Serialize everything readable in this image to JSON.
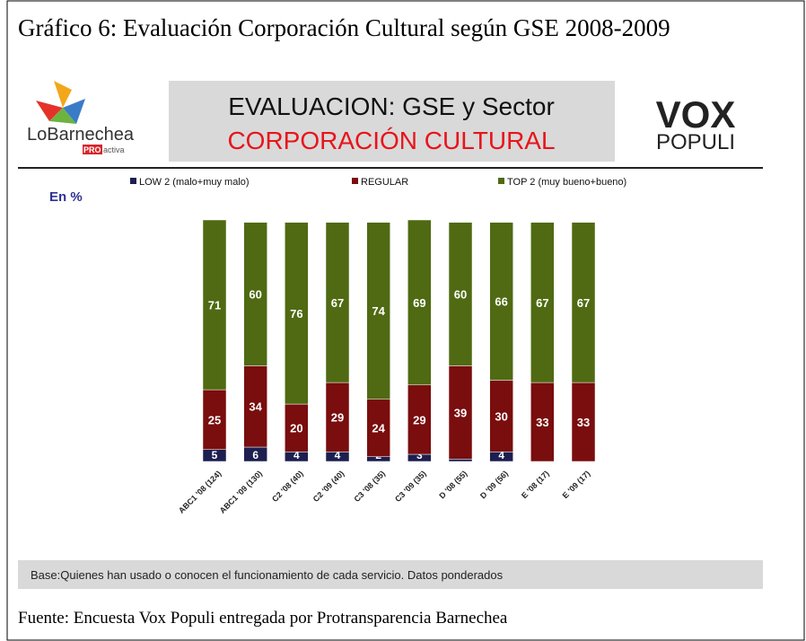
{
  "title": "Gráfico 6: Evaluación Corporación Cultural según GSE 2008-2009",
  "header": {
    "logo_left": "LoBarnechea",
    "logo_badge": "PRO",
    "logo_badge_suffix": "activa",
    "heading": "EVALUACION: GSE y Sector",
    "subheading": "CORPORACIÓN CULTURAL",
    "logo_right_top": "VOX",
    "logo_right_bottom": "POPULI"
  },
  "chart_data": {
    "type": "stacked_bar",
    "y_label": "En %",
    "categories": [
      "ABC1 '08 (124)",
      "ABC1 '09 (130)",
      "C2 '08 (40)",
      "C2 '09 (40)",
      "C3 '08 (35)",
      "C3 '09 (35)",
      "D '08 (55)",
      "D '09 (56)",
      "E '08 (17)",
      "E '09 (17)"
    ],
    "series": [
      {
        "name": "LOW 2 (malo+muy malo)",
        "color": "#1c1f4f",
        "values": [
          5,
          6,
          4,
          4,
          2,
          3,
          1,
          4,
          null,
          null
        ]
      },
      {
        "name": "REGULAR",
        "color": "#7a0d0d",
        "values": [
          25,
          34,
          20,
          29,
          24,
          29,
          39,
          30,
          33,
          33
        ]
      },
      {
        "name": "TOP 2 (muy bueno+bueno)",
        "color": "#4f6a12",
        "values": [
          71,
          60,
          76,
          67,
          74,
          69,
          60,
          66,
          67,
          67
        ]
      }
    ]
  },
  "note": "Base:Quienes han usado o conocen el funcionamiento de cada  servicio. Datos ponderados",
  "source": "Fuente: Encuesta Vox Populi entregada por Protransparencia Barnechea"
}
